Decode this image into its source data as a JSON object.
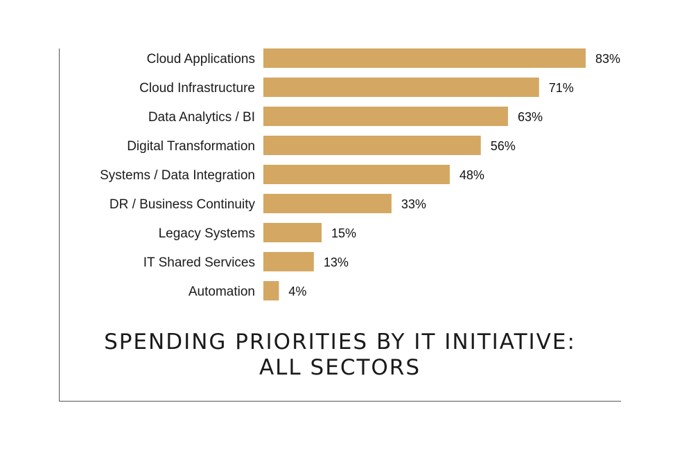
{
  "chart_data": {
    "type": "bar",
    "orientation": "horizontal",
    "title_lines": [
      "SPENDING PRIORITIES BY IT INITIATIVE:",
      "ALL SECTORS"
    ],
    "categories": [
      "Cloud Applications",
      "Cloud Infrastructure",
      "Data Analytics / BI",
      "Digital Transformation",
      "Systems / Data Integration",
      "DR / Business Continuity",
      "Legacy Systems",
      "IT Shared Services",
      "Automation"
    ],
    "values": [
      83,
      71,
      63,
      56,
      48,
      33,
      15,
      13,
      4
    ],
    "value_labels": [
      "83%",
      "71%",
      "63%",
      "56%",
      "48%",
      "33%",
      "15%",
      "13%",
      "4%"
    ],
    "unit": "%",
    "xlim": [
      0,
      83
    ],
    "grid": false,
    "legend": "none",
    "colors": {
      "bar": "#D4A862",
      "text": "#1a1a1a",
      "frame": "#555555"
    }
  }
}
